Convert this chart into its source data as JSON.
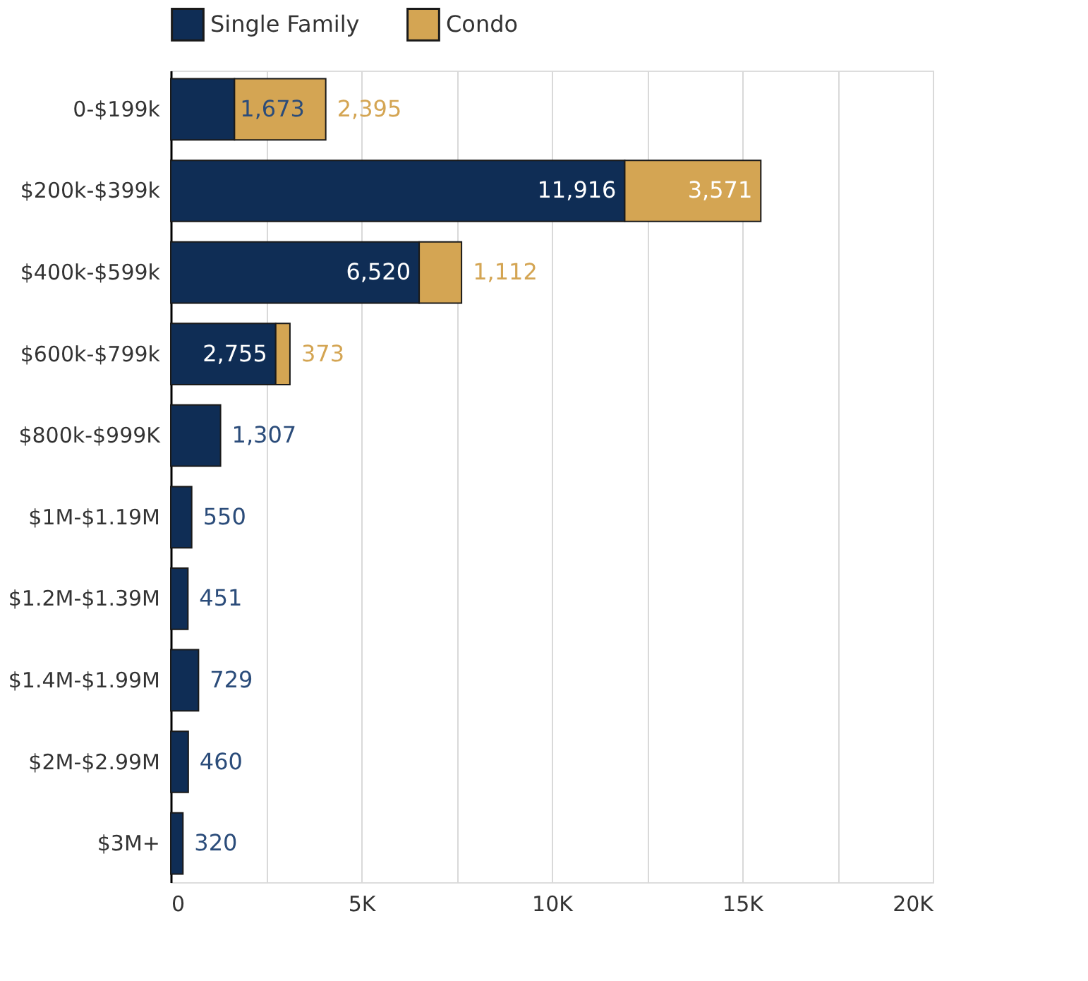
{
  "chart_data": {
    "type": "bar",
    "orientation": "horizontal",
    "stacked": true,
    "categories": [
      "0-$199k",
      "$200k-$399k",
      "$400k-$599k",
      "$600k-$799k",
      "$800k-$999K",
      "$1M-$1.19M",
      "$1.2M-$1.39M",
      "$1.4M-$1.99M",
      "$2M-$2.99M",
      "$3M+"
    ],
    "series": [
      {
        "name": "Single Family",
        "color": "#0f2d55",
        "values": [
          1673,
          11916,
          6520,
          2755,
          1307,
          550,
          451,
          729,
          460,
          320
        ],
        "value_labels": [
          "1,673",
          "11,916",
          "6,520",
          "2,755",
          "1,307",
          "550",
          "451",
          "729",
          "460",
          "320"
        ]
      },
      {
        "name": "Condo",
        "color": "#d4a553",
        "values": [
          2395,
          3571,
          1112,
          373,
          null,
          null,
          null,
          null,
          null,
          null
        ],
        "value_labels": [
          "2,395",
          "3,571",
          "1,112",
          "373",
          null,
          null,
          null,
          null,
          null,
          null
        ]
      }
    ],
    "xlim": [
      0,
      20000
    ],
    "xticks": [
      0,
      {
        "value": 2500,
        "label": null
      },
      {
        "value": 5000,
        "label": "5K"
      },
      {
        "value": 7500,
        "label": null
      },
      {
        "value": 10000,
        "label": "10K"
      },
      {
        "value": 12500,
        "label": null
      },
      {
        "value": 15000,
        "label": "15K"
      },
      {
        "value": 17500,
        "label": null
      },
      {
        "value": 20000,
        "label": "20K"
      }
    ],
    "grid": "x",
    "legend": "top"
  }
}
